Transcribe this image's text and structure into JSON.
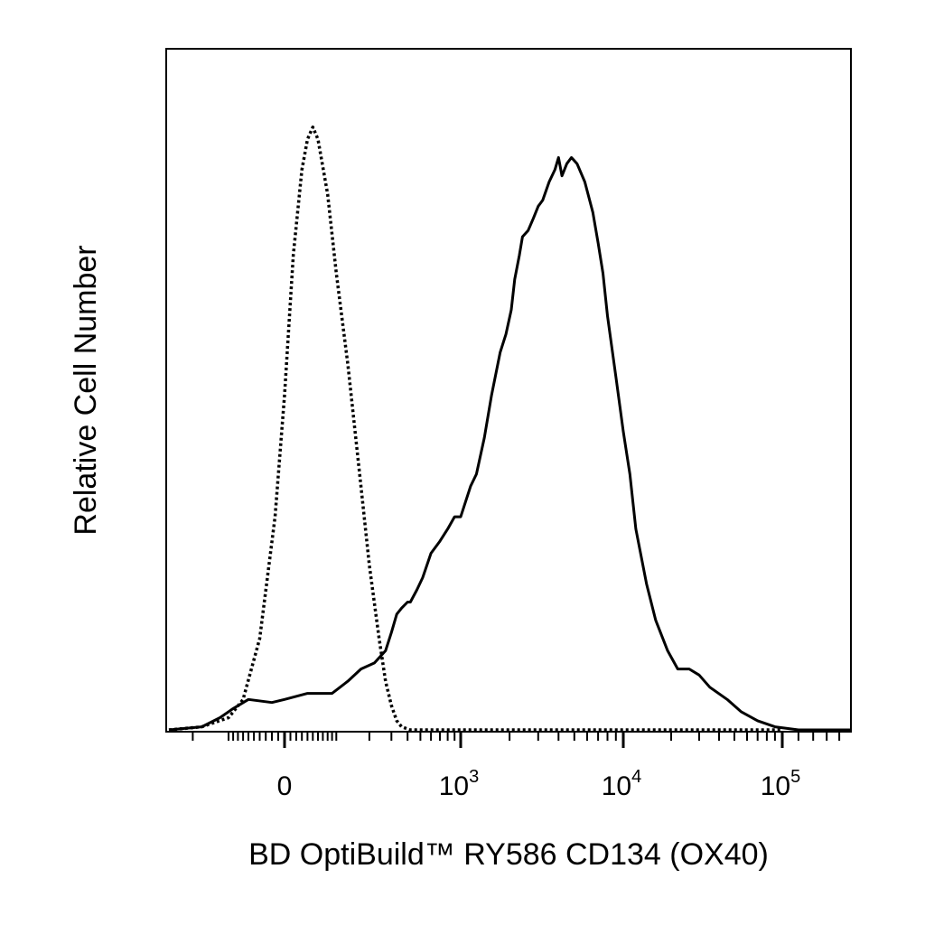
{
  "chart_data": {
    "type": "line",
    "title": "",
    "xlabel": "BD OptiBuild™ RY586 CD134 (OX40)",
    "ylabel": "Relative Cell Number",
    "x_scale": "biexponential",
    "xlim": [
      -300,
      150000
    ],
    "ylim": [
      0,
      100
    ],
    "x_ticks": [
      {
        "value": 0,
        "base": "0",
        "exp": ""
      },
      {
        "value": 1000,
        "base": "10",
        "exp": "3"
      },
      {
        "value": 10000,
        "base": "10",
        "exp": "4"
      },
      {
        "value": 100000,
        "base": "10",
        "exp": "5"
      }
    ],
    "grid": false,
    "legend": "none",
    "series": [
      {
        "style": "dotted",
        "color": "#000000",
        "points": [
          [
            -300,
            0
          ],
          [
            -170,
            0.5
          ],
          [
            -100,
            2
          ],
          [
            -70,
            5
          ],
          [
            -40,
            15
          ],
          [
            -15,
            35
          ],
          [
            0,
            55
          ],
          [
            15,
            78
          ],
          [
            30,
            92
          ],
          [
            40,
            97
          ],
          [
            50,
            99
          ],
          [
            60,
            97
          ],
          [
            80,
            88
          ],
          [
            100,
            75
          ],
          [
            130,
            60
          ],
          [
            170,
            40
          ],
          [
            200,
            27
          ],
          [
            240,
            15
          ],
          [
            270,
            8
          ],
          [
            300,
            4
          ],
          [
            330,
            1.5
          ],
          [
            360,
            0.5
          ],
          [
            420,
            0
          ],
          [
            100000,
            0
          ]
        ]
      },
      {
        "style": "solid",
        "color": "#000000",
        "points": [
          [
            -300,
            0
          ],
          [
            -170,
            0.5
          ],
          [
            -120,
            2
          ],
          [
            -90,
            3.5
          ],
          [
            -60,
            5
          ],
          [
            -20,
            4.5
          ],
          [
            0,
            5
          ],
          [
            40,
            6
          ],
          [
            90,
            6
          ],
          [
            130,
            8
          ],
          [
            170,
            10
          ],
          [
            220,
            11
          ],
          [
            270,
            13
          ],
          [
            300,
            16
          ],
          [
            330,
            19
          ],
          [
            360,
            20
          ],
          [
            400,
            21
          ],
          [
            420,
            21
          ],
          [
            470,
            23
          ],
          [
            520,
            25
          ],
          [
            600,
            29
          ],
          [
            700,
            31
          ],
          [
            800,
            33
          ],
          [
            900,
            35
          ],
          [
            1000,
            35
          ],
          [
            1150,
            40
          ],
          [
            1250,
            42
          ],
          [
            1400,
            48
          ],
          [
            1550,
            55
          ],
          [
            1750,
            62
          ],
          [
            1900,
            65
          ],
          [
            2050,
            69
          ],
          [
            2150,
            74
          ],
          [
            2300,
            78
          ],
          [
            2400,
            81
          ],
          [
            2600,
            82
          ],
          [
            2800,
            84
          ],
          [
            3000,
            86
          ],
          [
            3200,
            87
          ],
          [
            3500,
            90
          ],
          [
            3800,
            92
          ],
          [
            4000,
            94
          ],
          [
            4200,
            91
          ],
          [
            4500,
            93
          ],
          [
            4800,
            94
          ],
          [
            5200,
            93
          ],
          [
            5800,
            90
          ],
          [
            6500,
            85
          ],
          [
            7000,
            80
          ],
          [
            7500,
            75
          ],
          [
            8000,
            68
          ],
          [
            9000,
            58
          ],
          [
            10000,
            49
          ],
          [
            11000,
            42
          ],
          [
            12000,
            33
          ],
          [
            14000,
            24
          ],
          [
            16000,
            18
          ],
          [
            19000,
            13
          ],
          [
            22000,
            10
          ],
          [
            26000,
            10
          ],
          [
            30000,
            9
          ],
          [
            35000,
            7
          ],
          [
            45000,
            5
          ],
          [
            55000,
            3
          ],
          [
            70000,
            1.5
          ],
          [
            90000,
            0.5
          ],
          [
            110000,
            0
          ],
          [
            150000,
            0
          ]
        ]
      }
    ]
  }
}
